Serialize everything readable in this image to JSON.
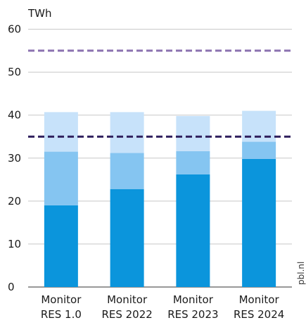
{
  "chart_data": {
    "type": "bar",
    "stacked": true,
    "ylabel": "TWh",
    "ylim": [
      0,
      60
    ],
    "yticks": [
      0,
      10,
      20,
      30,
      40,
      50,
      60
    ],
    "grid": true,
    "categories": [
      [
        "Monitor",
        "RES 1.0"
      ],
      [
        "Monitor",
        "RES 2022"
      ],
      [
        "Monitor",
        "RES 2023"
      ],
      [
        "Monitor",
        "RES 2024"
      ]
    ],
    "series": [
      {
        "values": [
          19.0,
          22.8,
          26.2,
          29.8
        ],
        "color": "#0b95dc"
      },
      {
        "values": [
          12.5,
          8.4,
          5.4,
          4.0
        ],
        "color": "#85c5f1"
      },
      {
        "values": [
          9.2,
          9.5,
          8.2,
          7.2
        ],
        "color": "#c7e2fa"
      }
    ],
    "reference_lines": [
      {
        "value": 55,
        "color": "#8b72b0"
      },
      {
        "value": 35,
        "color": "#2e1e5c"
      }
    ],
    "credit": "pbl.nl",
    "gridline_color": "#c8c8c8"
  }
}
